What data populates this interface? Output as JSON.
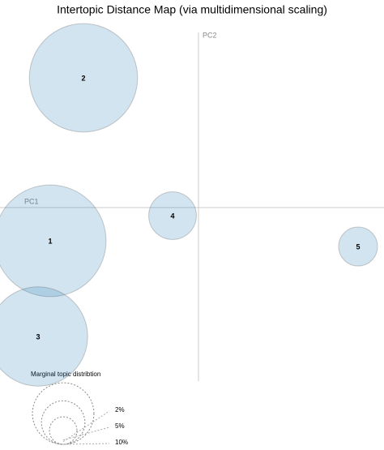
{
  "chart_data": {
    "type": "bubble",
    "title": "Intertopic Distance Map (via multidimensional scaling)",
    "x_label": "PC1",
    "y_label": "PC2",
    "labels": [
      "1",
      "2",
      "3",
      "4",
      "5"
    ],
    "x": [
      -0.183,
      -0.142,
      -0.198,
      -0.032,
      0.197
    ],
    "y": [
      -0.041,
      0.16,
      -0.159,
      -0.01,
      -0.048
    ],
    "sizes": [
      33,
      31,
      26,
      6,
      4
    ],
    "color": "#1f77b4",
    "xlim": [
      -0.245,
      0.229
    ],
    "ylim": [
      -0.214,
      0.216
    ],
    "legend_title": "Marginal topic distribtion",
    "legend_sizes": [
      2,
      5,
      10
    ],
    "legend_size_labels": [
      "2%",
      "5%",
      "10%"
    ]
  }
}
